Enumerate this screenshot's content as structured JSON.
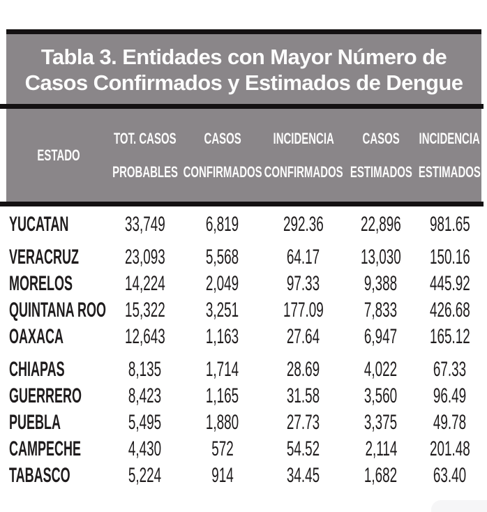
{
  "title": {
    "full": "Tabla 3. Entidades con Mayor Número de Casos Confirmados y Estimados de Dengue",
    "line1": "Tabla 3. Entidades con Mayor Número de",
    "line2": "Casos Confirmados y Estimados de Dengue"
  },
  "colors": {
    "block_bg": "#8a8689",
    "border_line": "#141112",
    "header_text": "#fcfcfc",
    "body_text": "#1e1b1c",
    "page_bg": "#ffffff"
  },
  "table": {
    "columns": [
      {
        "id": "estado",
        "line1": "ESTADO",
        "line2": ""
      },
      {
        "id": "tot_casos_probables",
        "line1": "TOT. CASOS",
        "line2": "PROBABLES"
      },
      {
        "id": "casos_confirmados",
        "line1": "CASOS",
        "line2": "CONFIRMADOS"
      },
      {
        "id": "incidencia_confirmados",
        "line1": "INCIDENCIA",
        "line2": "CONFIRMADOS"
      },
      {
        "id": "casos_estimados",
        "line1": "CASOS",
        "line2": "ESTIMADOS"
      },
      {
        "id": "incidencia_estimados",
        "line1": "INCIDENCIA",
        "line2": "ESTIMADOS"
      }
    ],
    "rows": [
      {
        "estado": "YUCATAN",
        "tot_casos_probables": "33,749",
        "casos_confirmados": "6,819",
        "incidencia_confirmados": "292.36",
        "casos_estimados": "22,896",
        "incidencia_estimados": "981.65"
      },
      {
        "estado": "VERACRUZ",
        "tot_casos_probables": "23,093",
        "casos_confirmados": "5,568",
        "incidencia_confirmados": "64.17",
        "casos_estimados": "13,030",
        "incidencia_estimados": "150.16"
      },
      {
        "estado": "MORELOS",
        "tot_casos_probables": "14,224",
        "casos_confirmados": "2,049",
        "incidencia_confirmados": "97.33",
        "casos_estimados": "9,388",
        "incidencia_estimados": "445.92"
      },
      {
        "estado": "QUINTANA ROO",
        "tot_casos_probables": "15,322",
        "casos_confirmados": "3,251",
        "incidencia_confirmados": "177.09",
        "casos_estimados": "7,833",
        "incidencia_estimados": "426.68"
      },
      {
        "estado": "OAXACA",
        "tot_casos_probables": "12,643",
        "casos_confirmados": "1,163",
        "incidencia_confirmados": "27.64",
        "casos_estimados": "6,947",
        "incidencia_estimados": "165.12"
      },
      {
        "estado": "CHIAPAS",
        "tot_casos_probables": "8,135",
        "casos_confirmados": "1,714",
        "incidencia_confirmados": "28.69",
        "casos_estimados": "4,022",
        "incidencia_estimados": "67.33"
      },
      {
        "estado": "GUERRERO",
        "tot_casos_probables": "8,423",
        "casos_confirmados": "1,165",
        "incidencia_confirmados": "31.58",
        "casos_estimados": "3,560",
        "incidencia_estimados": "96.49"
      },
      {
        "estado": "PUEBLA",
        "tot_casos_probables": "5,495",
        "casos_confirmados": "1,880",
        "incidencia_confirmados": "27.73",
        "casos_estimados": "3,375",
        "incidencia_estimados": "49.78"
      },
      {
        "estado": "CAMPECHE",
        "tot_casos_probables": "4,430",
        "casos_confirmados": "572",
        "incidencia_confirmados": "54.52",
        "casos_estimados": "2,114",
        "incidencia_estimados": "201.48"
      },
      {
        "estado": "TABASCO",
        "tot_casos_probables": "5,224",
        "casos_confirmados": "914",
        "incidencia_confirmados": "34.45",
        "casos_estimados": "1,682",
        "incidencia_estimados": "63.40"
      }
    ]
  },
  "chart_data": {
    "type": "table",
    "title": "Tabla 3. Entidades con Mayor Número de Casos Confirmados y Estimados de Dengue",
    "columns": [
      "ESTADO",
      "TOT. CASOS PROBABLES",
      "CASOS CONFIRMADOS",
      "INCIDENCIA CONFIRMADOS",
      "CASOS ESTIMADOS",
      "INCIDENCIA ESTIMADOS"
    ],
    "rows": [
      [
        "YUCATAN",
        33749,
        6819,
        292.36,
        22896,
        981.65
      ],
      [
        "VERACRUZ",
        23093,
        5568,
        64.17,
        13030,
        150.16
      ],
      [
        "MORELOS",
        14224,
        2049,
        97.33,
        9388,
        445.92
      ],
      [
        "QUINTANA ROO",
        15322,
        3251,
        177.09,
        7833,
        426.68
      ],
      [
        "OAXACA",
        12643,
        1163,
        27.64,
        6947,
        165.12
      ],
      [
        "CHIAPAS",
        8135,
        1714,
        28.69,
        4022,
        67.33
      ],
      [
        "GUERRERO",
        8423,
        1165,
        31.58,
        3560,
        96.49
      ],
      [
        "PUEBLA",
        5495,
        1880,
        27.73,
        3375,
        49.78
      ],
      [
        "CAMPECHE",
        4430,
        572,
        54.52,
        2114,
        201.48
      ],
      [
        "TABASCO",
        5224,
        914,
        34.45,
        1682,
        63.4
      ]
    ]
  }
}
